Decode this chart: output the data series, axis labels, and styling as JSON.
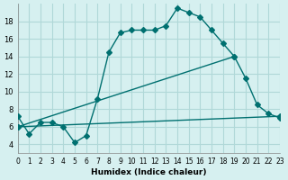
{
  "xlabel": "Humidex (Indice chaleur)",
  "bg_color": "#d6f0f0",
  "grid_color": "#b0d8d8",
  "line_color": "#007070",
  "xlim": [
    0,
    23
  ],
  "ylim": [
    3,
    20
  ],
  "yticks": [
    4,
    6,
    8,
    10,
    12,
    14,
    16,
    18
  ],
  "xticks": [
    0,
    1,
    2,
    3,
    4,
    5,
    6,
    7,
    8,
    9,
    10,
    11,
    12,
    13,
    14,
    15,
    16,
    17,
    18,
    19,
    20,
    21,
    22,
    23
  ],
  "xtick_labels": [
    "0",
    "1",
    "2",
    "3",
    "4",
    "5",
    "6",
    "7",
    "8",
    "9",
    "10",
    "11",
    "12",
    "13",
    "14",
    "15",
    "16",
    "17",
    "18",
    "19",
    "20",
    "21",
    "22",
    "23"
  ],
  "curve1_x": [
    0,
    1,
    2,
    3,
    4,
    5,
    6,
    7,
    8,
    9,
    10,
    11,
    12,
    13,
    14,
    15,
    16,
    17,
    18,
    19,
    20,
    21,
    22,
    23
  ],
  "curve1_y": [
    7.2,
    5.2,
    6.5,
    6.5,
    6.0,
    4.2,
    5.0,
    9.2,
    14.5,
    16.7,
    17.0,
    17.0,
    17.0,
    17.5,
    19.5,
    19.0,
    18.5,
    17.0,
    15.5,
    14.0,
    11.5,
    8.5,
    7.5,
    7.0
  ],
  "curve2_x": [
    0,
    23
  ],
  "curve2_y": [
    6.0,
    7.2
  ],
  "curve3_x": [
    0,
    19
  ],
  "curve3_y": [
    6.0,
    14.0
  ]
}
